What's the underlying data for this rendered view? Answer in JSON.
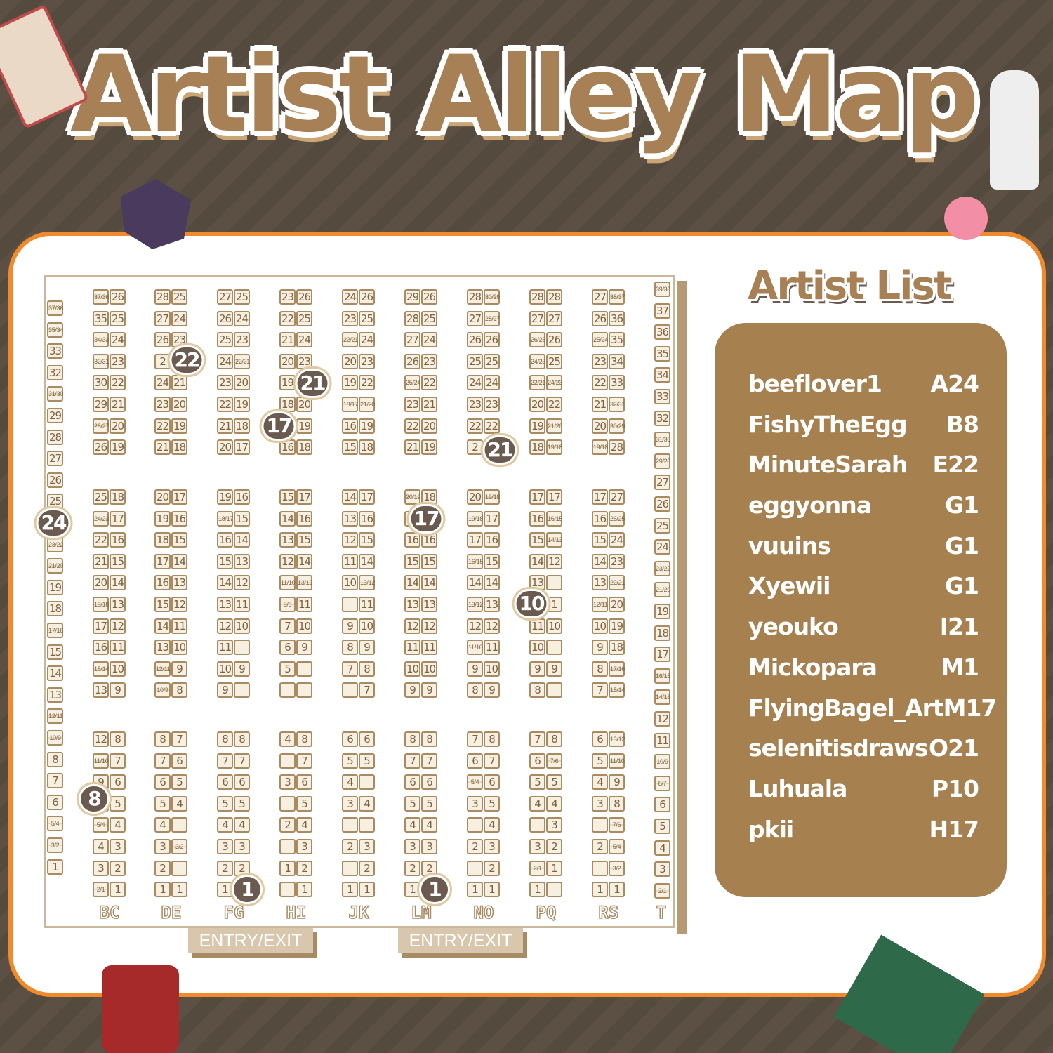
{
  "title": "Artist Alley Map",
  "artist_list": {
    "title": "Artist List",
    "items": [
      {
        "name": "beeflover1",
        "booth": "A24"
      },
      {
        "name": "FishyTheEgg",
        "booth": "B8"
      },
      {
        "name": "MinuteSarah",
        "booth": "E22"
      },
      {
        "name": "eggyonna",
        "booth": "G1"
      },
      {
        "name": "vuuins",
        "booth": "G1"
      },
      {
        "name": "Xyewii",
        "booth": "G1"
      },
      {
        "name": "yeouko",
        "booth": "I21"
      },
      {
        "name": "Mickopara",
        "booth": "M1"
      },
      {
        "name": "FlyingBagel_Art",
        "booth": "M17"
      },
      {
        "name": "selenitisdraws",
        "booth": "O21"
      },
      {
        "name": "Luhuala",
        "booth": "P10"
      },
      {
        "name": "pkii",
        "booth": "H17"
      }
    ]
  },
  "entries": [
    "ENTRY/EXIT",
    "ENTRY/EXIT"
  ],
  "markers": [
    "22",
    "21",
    "17",
    "21",
    "24",
    "17",
    "10",
    "8",
    "1",
    "1"
  ],
  "colors": {
    "background": "#5b5043",
    "panel_border": "#f08a2c",
    "accent": "#a88055",
    "list_bg": "#a6804f",
    "marker": "#6a5a50"
  },
  "map": {
    "column_labels": [
      "BC",
      "DE",
      "FG",
      "HI",
      "JK",
      "LM",
      "NO",
      "PQ",
      "RS",
      "T"
    ],
    "left_wall": [
      "37/36",
      "35/34",
      "33",
      "32",
      "31/30",
      "29",
      "28",
      "27",
      "26",
      "25",
      "",
      "23/22",
      "21/20",
      "19",
      "18",
      "17/16",
      "15",
      "14",
      "13",
      "12/11",
      "10/9",
      "8",
      "7",
      "6",
      "5/4",
      "3/2",
      "1"
    ],
    "right_wall": [
      "39/38",
      "37",
      "36",
      "35",
      "34",
      "33",
      "32",
      "31/30",
      "29/28",
      "27",
      "26",
      "25",
      "24",
      "23/22",
      "21/20",
      "19",
      "18",
      "17",
      "16/15",
      "14/13",
      "12",
      "11",
      "10/9",
      "8/7",
      "6",
      "5",
      "4",
      "3",
      "2/1"
    ],
    "sections": [
      [
        [
          [
            "37/36",
            "26"
          ],
          [
            "35",
            "25"
          ],
          [
            "34/33",
            "24"
          ],
          [
            "32/31",
            "23"
          ],
          [
            "30",
            "22"
          ],
          [
            "29",
            "21"
          ],
          [
            "28/27",
            "20"
          ],
          [
            "26",
            "19"
          ]
        ],
        [
          [
            "28",
            "25"
          ],
          [
            "27",
            "24"
          ],
          [
            "26",
            "23"
          ],
          [
            "2",
            ""
          ],
          [
            "24",
            "21"
          ],
          [
            "23",
            "20"
          ],
          [
            "22",
            "19"
          ],
          [
            "21",
            "18"
          ]
        ],
        [
          [
            "27",
            "25"
          ],
          [
            "26",
            "24"
          ],
          [
            "25",
            "23"
          ],
          [
            "24",
            "22/21"
          ],
          [
            "23",
            "20"
          ],
          [
            "22",
            "19"
          ],
          [
            "21",
            "18"
          ],
          [
            "20",
            "17"
          ]
        ],
        [
          [
            "23",
            "26"
          ],
          [
            "22",
            "25"
          ],
          [
            "21",
            "24"
          ],
          [
            "20",
            "23"
          ],
          [
            "19",
            ""
          ],
          [
            "18",
            "20"
          ],
          [
            "",
            "19"
          ],
          [
            "16",
            "18"
          ]
        ],
        [
          [
            "24",
            "26"
          ],
          [
            "23",
            "25"
          ],
          [
            "22/21",
            "24"
          ],
          [
            "20",
            "23"
          ],
          [
            "19",
            "22"
          ],
          [
            "18/17",
            "21/20"
          ],
          [
            "16",
            "19"
          ],
          [
            "15",
            "18"
          ]
        ],
        [
          [
            "29",
            "26"
          ],
          [
            "28",
            "25"
          ],
          [
            "27",
            "24"
          ],
          [
            "26",
            "23"
          ],
          [
            "25/24",
            "22"
          ],
          [
            "23",
            "21"
          ],
          [
            "22",
            "20"
          ],
          [
            "21",
            "19"
          ]
        ],
        [
          [
            "28",
            "30/29"
          ],
          [
            "27",
            "28/27"
          ],
          [
            "26",
            "26"
          ],
          [
            "25",
            "25"
          ],
          [
            "24",
            "24"
          ],
          [
            "23",
            "23"
          ],
          [
            "22",
            "22"
          ],
          [
            "2",
            ""
          ]
        ],
        [
          [
            "28",
            "28"
          ],
          [
            "27",
            "27"
          ],
          [
            "26/25",
            "26"
          ],
          [
            "24/23",
            "25"
          ],
          [
            "22/21",
            "24/23"
          ],
          [
            "20",
            "22"
          ],
          [
            "19",
            "21/20"
          ],
          [
            "18",
            "19/18"
          ]
        ],
        [
          [
            "27",
            "38/37"
          ],
          [
            "26",
            "36"
          ],
          [
            "25/24",
            "35"
          ],
          [
            "23",
            "34"
          ],
          [
            "22",
            "33"
          ],
          [
            "21",
            "32/31"
          ],
          [
            "20",
            "30/29"
          ],
          [
            "19/18",
            "28"
          ]
        ]
      ],
      [
        [
          [
            "25",
            "18"
          ],
          [
            "24/23",
            "17"
          ],
          [
            "22",
            "16"
          ],
          [
            "21",
            "15"
          ],
          [
            "20",
            "14"
          ],
          [
            "19/18",
            "13"
          ],
          [
            "17",
            "12"
          ],
          [
            "16",
            "11"
          ],
          [
            "15/14",
            "10"
          ],
          [
            "13",
            "9"
          ]
        ],
        [
          [
            "20",
            "17"
          ],
          [
            "19",
            "16"
          ],
          [
            "18",
            "15"
          ],
          [
            "17",
            "14"
          ],
          [
            "16",
            "13"
          ],
          [
            "15",
            "12"
          ],
          [
            "14",
            "11"
          ],
          [
            "13",
            "10"
          ],
          [
            "12/11",
            "9"
          ],
          [
            "10/9",
            "8"
          ]
        ],
        [
          [
            "19",
            "16"
          ],
          [
            "18/17",
            "15"
          ],
          [
            "16",
            "14"
          ],
          [
            "15",
            "13"
          ],
          [
            "14",
            "12"
          ],
          [
            "13",
            "11"
          ],
          [
            "12",
            "10"
          ],
          [
            "11",
            ""
          ],
          [
            "10",
            "9"
          ],
          [
            "9",
            ""
          ]
        ],
        [
          [
            "15",
            "17"
          ],
          [
            "14",
            "16"
          ],
          [
            "13",
            "15"
          ],
          [
            "12",
            "14"
          ],
          [
            "11/10",
            "13/12"
          ],
          [
            "9/8",
            "11"
          ],
          [
            "7",
            "10"
          ],
          [
            "6",
            "9"
          ],
          [
            "5",
            ""
          ],
          [
            "",
            ""
          ]
        ],
        [
          [
            "14",
            "17"
          ],
          [
            "13",
            "16"
          ],
          [
            "12",
            "15"
          ],
          [
            "11",
            "14"
          ],
          [
            "10",
            "13/12"
          ],
          [
            "",
            "11"
          ],
          [
            "9",
            "10"
          ],
          [
            "8",
            "9"
          ],
          [
            "7",
            "8"
          ],
          [
            "",
            "7"
          ]
        ],
        [
          [
            "20/19",
            "18"
          ],
          [
            "",
            ""
          ],
          [
            "16",
            "16"
          ],
          [
            "15",
            "15"
          ],
          [
            "14",
            "14"
          ],
          [
            "13",
            "13"
          ],
          [
            "12",
            "12"
          ],
          [
            "11",
            "11"
          ],
          [
            "10",
            "10"
          ],
          [
            "9",
            "9"
          ]
        ],
        [
          [
            "20",
            "19/18"
          ],
          [
            "19/18",
            "17"
          ],
          [
            "17",
            "16"
          ],
          [
            "16/15",
            "15"
          ],
          [
            "14",
            "14"
          ],
          [
            "13/12",
            "13"
          ],
          [
            "12",
            "12"
          ],
          [
            "11/10",
            "11"
          ],
          [
            "9",
            "10"
          ],
          [
            "8",
            "9"
          ]
        ],
        [
          [
            "17",
            "17"
          ],
          [
            "16",
            "16/15"
          ],
          [
            "15",
            "14/13"
          ],
          [
            "14",
            "12"
          ],
          [
            "13",
            ""
          ],
          [
            "",
            "1"
          ],
          [
            "11",
            "10"
          ],
          [
            "10",
            ""
          ],
          [
            "9",
            "9"
          ],
          [
            "8",
            ""
          ]
        ],
        [
          [
            "17",
            "27"
          ],
          [
            "16",
            "26/25"
          ],
          [
            "15",
            "24"
          ],
          [
            "14",
            "23"
          ],
          [
            "13",
            "22/21"
          ],
          [
            "12/11",
            "20"
          ],
          [
            "10",
            "19"
          ],
          [
            "9",
            "18"
          ],
          [
            "8",
            "17/16"
          ],
          [
            "7",
            "15/14"
          ]
        ]
      ],
      [
        [
          [
            "12",
            "8"
          ],
          [
            "11/10",
            "7"
          ],
          [
            "9",
            "6"
          ],
          [
            "",
            "5"
          ],
          [
            "5/4",
            "4"
          ],
          [
            "4",
            "3"
          ],
          [
            "3",
            "2"
          ],
          [
            "2/1",
            "1"
          ]
        ],
        [
          [
            "8",
            "7"
          ],
          [
            "7",
            "6"
          ],
          [
            "6",
            "5"
          ],
          [
            "5",
            "4"
          ],
          [
            "4",
            ""
          ],
          [
            "3",
            "3/2"
          ],
          [
            "2",
            ""
          ],
          [
            "1",
            "1"
          ]
        ],
        [
          [
            "8",
            "8"
          ],
          [
            "7",
            "7"
          ],
          [
            "6",
            "6"
          ],
          [
            "5",
            "5"
          ],
          [
            "4",
            "4"
          ],
          [
            "3",
            "3"
          ],
          [
            "2",
            "2"
          ],
          [
            "1",
            ""
          ]
        ],
        [
          [
            "4",
            "8"
          ],
          [
            "",
            "7"
          ],
          [
            "3",
            "6"
          ],
          [
            "",
            "5"
          ],
          [
            "2",
            "4"
          ],
          [
            "",
            "3"
          ],
          [
            "1",
            "2"
          ],
          [
            "",
            "1"
          ]
        ],
        [
          [
            "6",
            "6"
          ],
          [
            "5",
            "5"
          ],
          [
            "4",
            ""
          ],
          [
            "3",
            "4"
          ],
          [
            "",
            ""
          ],
          [
            "2",
            "3"
          ],
          [
            "",
            "2"
          ],
          [
            "1",
            "1"
          ]
        ],
        [
          [
            "8",
            "8"
          ],
          [
            "7",
            "7"
          ],
          [
            "6",
            "6"
          ],
          [
            "5",
            "5"
          ],
          [
            "4",
            "4"
          ],
          [
            "3",
            "3"
          ],
          [
            "2",
            "2"
          ],
          [
            "1",
            ""
          ]
        ],
        [
          [
            "7",
            "8"
          ],
          [
            "6",
            "7"
          ],
          [
            "5/4",
            "6"
          ],
          [
            "3",
            "5"
          ],
          [
            "",
            "4"
          ],
          [
            "2",
            "3"
          ],
          [
            "",
            "2"
          ],
          [
            "1",
            "1"
          ]
        ],
        [
          [
            "7",
            "8"
          ],
          [
            "6",
            "7/6"
          ],
          [
            "5",
            "5"
          ],
          [
            "4",
            "4"
          ],
          [
            "",
            "3"
          ],
          [
            "3",
            "2"
          ],
          [
            "2/1",
            "1"
          ],
          [
            "1",
            ""
          ]
        ],
        [
          [
            "6",
            "13/12"
          ],
          [
            "5",
            "11/10"
          ],
          [
            "4",
            "9"
          ],
          [
            "3",
            "8"
          ],
          [
            "",
            "7/6"
          ],
          [
            "2",
            "5/4"
          ],
          [
            "",
            "3/2"
          ],
          [
            "1",
            "1"
          ]
        ]
      ]
    ]
  }
}
